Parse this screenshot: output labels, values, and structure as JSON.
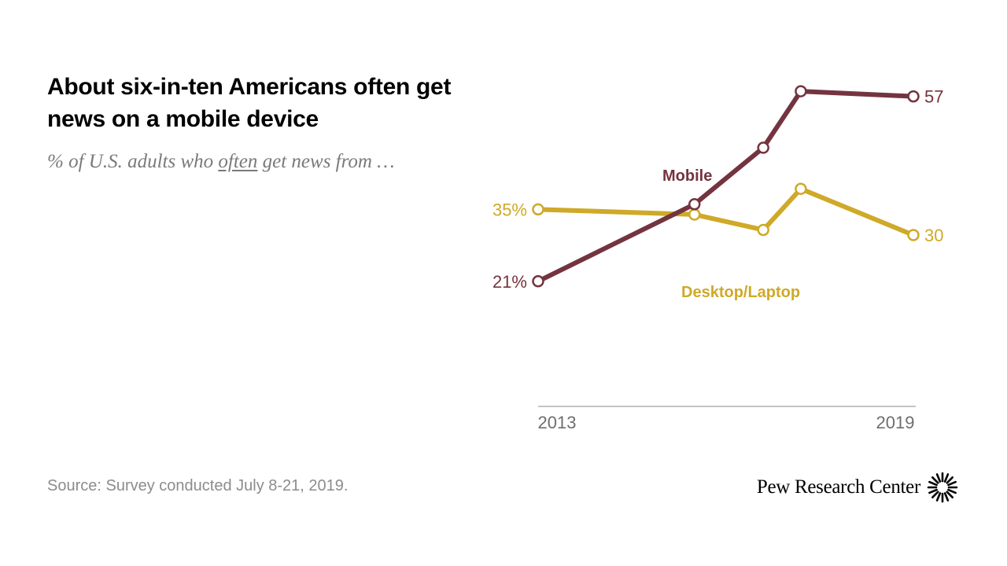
{
  "title": "About six-in-ten Americans often get news on a mobile device",
  "subtitle": {
    "before": "% of U.S. adults who ",
    "emphasis": "often",
    "after": " get news from …"
  },
  "chart_data": {
    "type": "line",
    "xlim": [
      2013,
      2019
    ],
    "ylim": [
      0,
      60
    ],
    "x_tick_labels": [
      "2013",
      "2019"
    ],
    "grid": false,
    "series": [
      {
        "name": "Mobile",
        "color": "#74343F",
        "points": [
          {
            "x": 2013.0,
            "y": 21
          },
          {
            "x": 2015.5,
            "y": 36
          },
          {
            "x": 2016.6,
            "y": 47
          },
          {
            "x": 2017.2,
            "y": 58
          },
          {
            "x": 2019.0,
            "y": 57
          }
        ],
        "start_label": "21%",
        "end_label": "57"
      },
      {
        "name": "Desktop/Laptop",
        "color": "#CFA928",
        "points": [
          {
            "x": 2013.0,
            "y": 35
          },
          {
            "x": 2015.5,
            "y": 34
          },
          {
            "x": 2016.6,
            "y": 31
          },
          {
            "x": 2017.2,
            "y": 39
          },
          {
            "x": 2019.0,
            "y": 30
          }
        ],
        "start_label": "35%",
        "end_label": "30"
      }
    ]
  },
  "source": "Source: Survey conducted July 8-21, 2019.",
  "logo": {
    "text": "Pew Research Center",
    "icon": "pew-sunburst-icon"
  }
}
